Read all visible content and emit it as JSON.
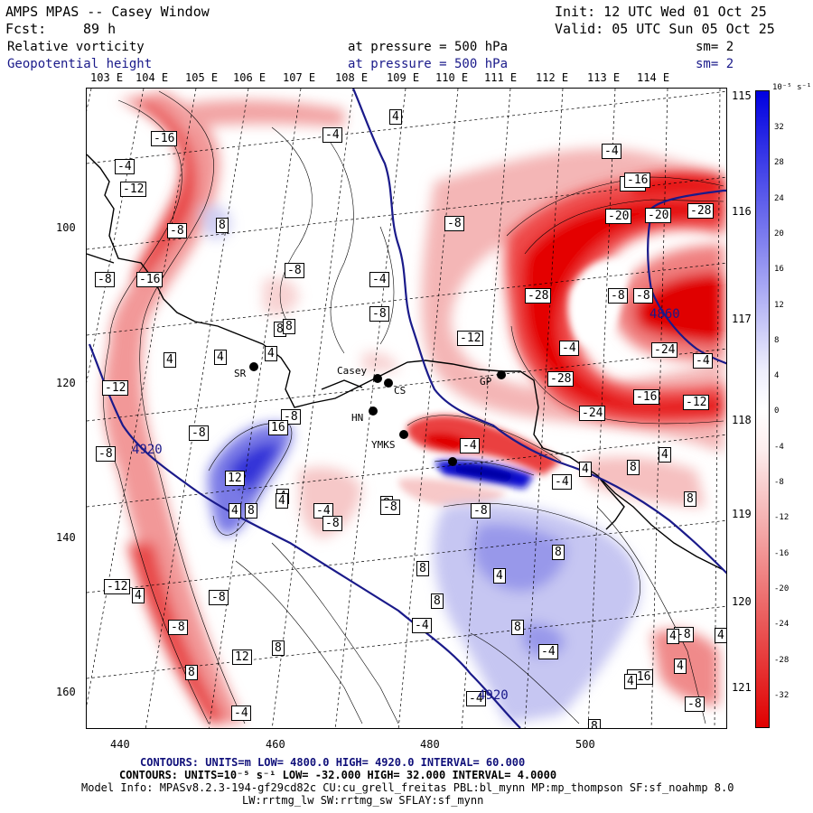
{
  "header": {
    "title": "AMPS MPAS -- Casey Window",
    "init": "Init: 12 UTC Wed 01 Oct 25",
    "fcst_label": "Fcst:",
    "fcst_value": "89 h",
    "valid": "Valid: 05 UTC Sun 05 Oct 25",
    "field1_name": "Relative vorticity",
    "field1_level": "at pressure =  500 hPa",
    "field1_sm": "sm= 2",
    "field2_name": "Geopotential height",
    "field2_level": "at pressure =  500 hPa",
    "field2_sm": "sm= 2"
  },
  "axes": {
    "top_lon_labels": [
      "103 E",
      "104 E",
      "105 E",
      "106 E",
      "107 E",
      "108 E",
      "109 E",
      "110 E",
      "111 E",
      "112 E",
      "113 E",
      "114 E"
    ],
    "right_lon_labels": [
      "115 E",
      "116 E",
      "117 E",
      "118 E",
      "119 E",
      "120 E",
      "121 E"
    ],
    "x_ticks": [
      "440",
      "460",
      "480",
      "500"
    ],
    "y_ticks": [
      "100",
      "120",
      "140",
      "160"
    ]
  },
  "colorbar": {
    "unit": "10⁻⁵ s⁻¹",
    "labels": [
      "32",
      "28",
      "24",
      "20",
      "16",
      "12",
      "8",
      "4",
      "0",
      "-4",
      "-8",
      "-12",
      "-16",
      "-20",
      "-24",
      "-28",
      "-32"
    ]
  },
  "stations": [
    {
      "name": "SR",
      "x": 280,
      "y": 405
    },
    {
      "name": "Casey",
      "x": 417,
      "y": 418
    },
    {
      "name": "CS",
      "x": 429,
      "y": 423
    },
    {
      "name": "HN",
      "x": 412,
      "y": 454
    },
    {
      "name": "YMKS",
      "x": 446,
      "y": 480
    },
    {
      "name": "GP",
      "x": 554,
      "y": 414
    }
  ],
  "height_labels": [
    "4920",
    "4920",
    "4860"
  ],
  "vort_labels": [
    "-8",
    "-16",
    "-12",
    "-8",
    "-16",
    "-4",
    "-8",
    "8",
    "4",
    "4",
    "8",
    "-8",
    "-4",
    "-4",
    "-8",
    "-8",
    "-8",
    "4",
    "8",
    "-4",
    "-4",
    "8",
    "4",
    "4",
    "4",
    "-4",
    "-12",
    "-28",
    "-20",
    "-16",
    "-20",
    "-28",
    "-8",
    "-8",
    "-4",
    "-24",
    "-28",
    "-4",
    "-24",
    "-16",
    "-12",
    "-12",
    "-12",
    "-8",
    "4",
    "4",
    "16",
    "12",
    "8",
    "4",
    "-8",
    "-8",
    "-8",
    "4",
    "8",
    "8",
    "8",
    "8",
    "4",
    "8",
    "8",
    "-4",
    "-4",
    "-16",
    "-8",
    "4",
    "-12",
    "-8",
    "8",
    "12",
    "8",
    "8",
    "-8",
    "-4",
    "4",
    "4",
    "4",
    "4",
    "-8",
    "-4",
    "-4"
  ],
  "footer": {
    "line1": "CONTOURS:  UNITS=m  LOW=  4800.0          HIGH=  4920.0          INTERVAL=    60.000",
    "line2": "CONTOURS:  UNITS=10⁻⁵ s⁻¹   LOW= -32.000          HIGH=  32.000          INTERVAL=   4.0000",
    "line3": "Model Info: MPASv8.2.3-194-gf29cd82c CU:cu_grell_freitas PBL:bl_mynn MP:mp_thompson SF:sf_noahmp 8.0",
    "line4": "LW:rrtmg_lw SW:rrtmg_sw SFLAY:sf_mynn"
  },
  "colors": {
    "red_strong": "#e80000",
    "blue_strong": "#0000e0",
    "height_line": "#1a1a8a"
  }
}
